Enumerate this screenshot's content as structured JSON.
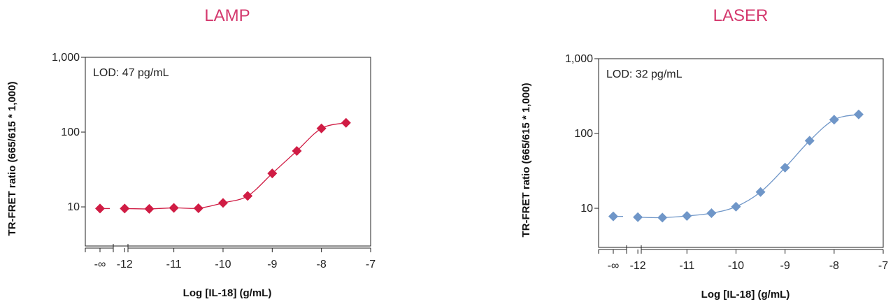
{
  "chart_data": [
    {
      "type": "scatter",
      "title": "LAMP",
      "xlabel": "Log [IL-18] (g/mL)",
      "ylabel": "TR-FRET ratio (665/615 * 1,000)",
      "yscale": "log",
      "ylim": [
        3,
        1000
      ],
      "xlim": [
        -12.8,
        -7
      ],
      "yticks": [
        "10",
        "100",
        "1,000"
      ],
      "xticks": [
        "-12",
        "-11",
        "-10",
        "-9",
        "-8",
        "-7"
      ],
      "x_break_label": "-∞",
      "annotation": "LOD: 47 pg/mL",
      "color": "#d01c44",
      "blank_value": 9.5,
      "series": [
        {
          "x": [
            -12,
            -11.5,
            -11,
            -10.5,
            -10,
            -9.5,
            -9,
            -8.5,
            -8,
            -7.5
          ],
          "y": [
            9.5,
            9.4,
            9.7,
            9.6,
            11.3,
            14,
            28,
            56,
            112,
            133
          ]
        }
      ]
    },
    {
      "type": "scatter",
      "title": "LASER",
      "xlabel": "Log [IL-18] (g/mL)",
      "ylabel": "TR-FRET ratio (665/615 * 1,000)",
      "yscale": "log",
      "ylim": [
        3,
        1000
      ],
      "xlim": [
        -12.8,
        -7
      ],
      "yticks": [
        "10",
        "100",
        "1,000"
      ],
      "xticks": [
        "-12",
        "-11",
        "-10",
        "-9",
        "-8",
        "-7"
      ],
      "x_break_label": "-∞",
      "annotation": "LOD: 32 pg/mL",
      "color": "#6f96c8",
      "blank_value": 7.8,
      "series": [
        {
          "x": [
            -12,
            -11.5,
            -11,
            -10.5,
            -10,
            -9.5,
            -9,
            -8.5,
            -8,
            -7.5
          ],
          "y": [
            7.6,
            7.5,
            7.9,
            8.6,
            10.5,
            16.5,
            35,
            80,
            153,
            180
          ]
        }
      ]
    }
  ]
}
